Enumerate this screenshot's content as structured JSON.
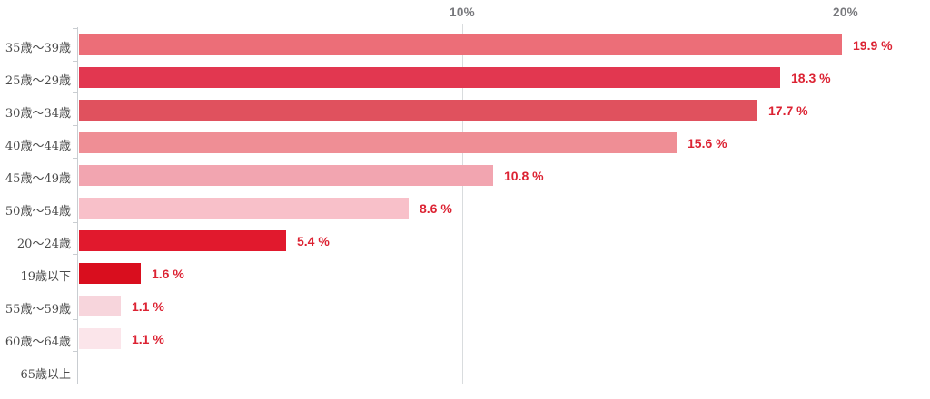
{
  "chart_data": {
    "type": "bar",
    "orientation": "horizontal",
    "title": "",
    "xlabel": "",
    "ylabel": "",
    "xlim": [
      0,
      22
    ],
    "grid": true,
    "x_ticks": [
      {
        "value": 10,
        "label": "10%"
      },
      {
        "value": 20,
        "label": "20%"
      }
    ],
    "categories": [
      "35歳〜39歳",
      "25歳〜29歳",
      "30歳〜34歳",
      "40歳〜44歳",
      "45歳〜49歳",
      "50歳〜54歳",
      "20〜24歳",
      "19歳以下",
      "55歳〜59歳",
      "60歳〜64歳",
      "65歳以上"
    ],
    "values": [
      19.9,
      18.3,
      17.7,
      15.6,
      10.8,
      8.6,
      5.4,
      1.6,
      1.1,
      1.1,
      0
    ],
    "value_labels": [
      "19.9 %",
      "18.3 %",
      "17.7 %",
      "15.6 %",
      "10.8 %",
      "8.6 %",
      "5.4 %",
      "1.6 %",
      "1.1 %",
      "1.1 %",
      ""
    ],
    "bar_colors": [
      "#ec6e78",
      "#e23750",
      "#e0515e",
      "#ef8e95",
      "#f2a5b0",
      "#f8c0c9",
      "#e1192d",
      "#d90e1e",
      "#f7d5dc",
      "#fbe5ea",
      "#ffffff"
    ],
    "legend": null
  },
  "colors": {
    "background": "#ffffff",
    "value_label": "#dc2333",
    "category_label": "#4a4a4a",
    "axis_tick_label": "#77787c",
    "gridline_minor": "#d9dcde",
    "gridline_major": "#aaabb2",
    "axis_line": "#c9cdd1"
  }
}
